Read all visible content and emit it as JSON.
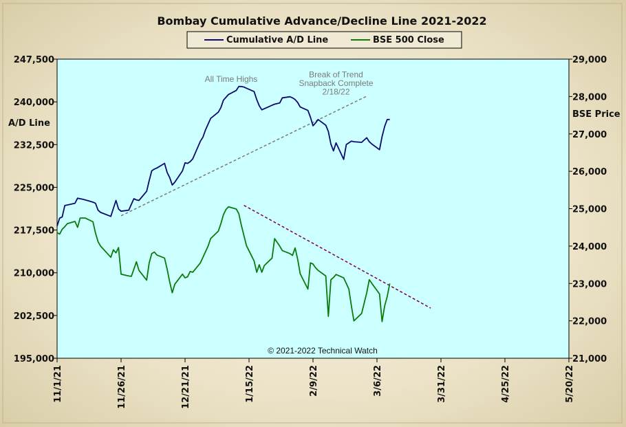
{
  "chart_data": {
    "type": "line",
    "title": "Bombay Cumulative Advance/Decline Line 2021-2022",
    "ylabel_left": "A/D Line",
    "ylabel_right": "BSE Price",
    "ylim_left": [
      195000,
      247500
    ],
    "ylim_right": [
      21000,
      29000
    ],
    "y_ticks_left": [
      "195,000",
      "202,500",
      "210,000",
      "217,500",
      "225,000",
      "232,500",
      "240,000",
      "247,500"
    ],
    "y_ticks_right": [
      "21,000",
      "22,000",
      "23,000",
      "24,000",
      "25,000",
      "26,000",
      "27,000",
      "28,000",
      "29,000"
    ],
    "x_range": [
      "2021-11-01",
      "2022-05-20"
    ],
    "x_ticks": [
      "11/1/21",
      "11/26/21",
      "12/21/21",
      "1/15/22",
      "2/9/22",
      "3/6/22",
      "3/31/22",
      "4/25/22",
      "5/20/22"
    ],
    "legend": {
      "placement": "top-center",
      "entries": [
        "Cumulative A/D Line",
        "BSE 500 Close"
      ]
    },
    "grid": false,
    "series": [
      {
        "name": "Cumulative A/D Line",
        "axis": "left",
        "color": "#0a0a6e",
        "x": [
          "2021-11-01",
          "2021-11-02",
          "2021-11-03",
          "2021-11-04",
          "2021-11-05",
          "2021-11-08",
          "2021-11-09",
          "2021-11-10",
          "2021-11-11",
          "2021-11-12",
          "2021-11-15",
          "2021-11-16",
          "2021-11-17",
          "2021-11-18",
          "2021-11-22",
          "2021-11-23",
          "2021-11-24",
          "2021-11-25",
          "2021-11-26",
          "2021-11-29",
          "2021-11-30",
          "2021-12-01",
          "2021-12-02",
          "2021-12-03",
          "2021-12-06",
          "2021-12-07",
          "2021-12-08",
          "2021-12-09",
          "2021-12-10",
          "2021-12-13",
          "2021-12-14",
          "2021-12-15",
          "2021-12-16",
          "2021-12-17",
          "2021-12-20",
          "2021-12-21",
          "2021-12-22",
          "2021-12-23",
          "2021-12-24",
          "2021-12-27",
          "2021-12-28",
          "2021-12-29",
          "2021-12-30",
          "2021-12-31",
          "2022-01-03",
          "2022-01-04",
          "2022-01-05",
          "2022-01-06",
          "2022-01-07",
          "2022-01-10",
          "2022-01-11",
          "2022-01-12",
          "2022-01-13",
          "2022-01-14",
          "2022-01-17",
          "2022-01-18",
          "2022-01-19",
          "2022-01-20",
          "2022-01-21",
          "2022-01-24",
          "2022-01-25",
          "2022-01-27",
          "2022-01-28",
          "2022-01-31",
          "2022-02-01",
          "2022-02-02",
          "2022-02-03",
          "2022-02-04",
          "2022-02-07",
          "2022-02-08",
          "2022-02-09",
          "2022-02-10",
          "2022-02-11",
          "2022-02-14",
          "2022-02-15",
          "2022-02-16",
          "2022-02-17",
          "2022-02-18",
          "2022-02-21",
          "2022-02-22",
          "2022-02-23",
          "2022-02-24",
          "2022-02-25",
          "2022-02-28",
          "2022-03-02",
          "2022-03-03",
          "2022-03-04",
          "2022-03-07",
          "2022-03-08",
          "2022-03-09",
          "2022-03-10",
          "2022-03-11"
        ],
        "values": [
          218200,
          219600,
          219800,
          221800,
          221900,
          222200,
          223100,
          223000,
          222900,
          222800,
          222400,
          222200,
          221000,
          220600,
          219900,
          221300,
          222700,
          221200,
          220800,
          221000,
          222000,
          223000,
          222800,
          222700,
          224300,
          226200,
          227900,
          228200,
          228400,
          229200,
          227600,
          226700,
          225400,
          225900,
          227900,
          229300,
          229200,
          229500,
          230000,
          233100,
          233800,
          235100,
          236100,
          237100,
          238200,
          239000,
          240300,
          240800,
          241300,
          242000,
          242700,
          242700,
          242600,
          242400,
          241800,
          240400,
          239300,
          238600,
          238800,
          239400,
          239600,
          239800,
          240700,
          240900,
          240700,
          240400,
          239900,
          239100,
          238500,
          237300,
          235800,
          236300,
          236900,
          235900,
          234800,
          232600,
          231400,
          232800,
          229900,
          232500,
          232800,
          233100,
          233000,
          232900,
          233700,
          233000,
          232600,
          231600,
          233900,
          235700,
          236900,
          236900
        ]
      },
      {
        "name": "BSE 500 Close",
        "axis": "right",
        "color": "#0a7a0a",
        "x": [
          "2021-11-01",
          "2021-11-02",
          "2021-11-03",
          "2021-11-04",
          "2021-11-05",
          "2021-11-08",
          "2021-11-09",
          "2021-11-10",
          "2021-11-11",
          "2021-11-12",
          "2021-11-15",
          "2021-11-16",
          "2021-11-17",
          "2021-11-18",
          "2021-11-22",
          "2021-11-23",
          "2021-11-24",
          "2021-11-25",
          "2021-11-26",
          "2021-11-29",
          "2021-11-30",
          "2021-12-01",
          "2021-12-02",
          "2021-12-03",
          "2021-12-06",
          "2021-12-07",
          "2021-12-08",
          "2021-12-09",
          "2021-12-10",
          "2021-12-13",
          "2021-12-14",
          "2021-12-15",
          "2021-12-16",
          "2021-12-17",
          "2021-12-20",
          "2021-12-21",
          "2021-12-22",
          "2021-12-23",
          "2021-12-24",
          "2021-12-27",
          "2021-12-28",
          "2021-12-29",
          "2021-12-30",
          "2021-12-31",
          "2022-01-03",
          "2022-01-04",
          "2022-01-05",
          "2022-01-06",
          "2022-01-07",
          "2022-01-10",
          "2022-01-11",
          "2022-01-12",
          "2022-01-13",
          "2022-01-14",
          "2022-01-17",
          "2022-01-18",
          "2022-01-19",
          "2022-01-20",
          "2022-01-21",
          "2022-01-24",
          "2022-01-25",
          "2022-01-27",
          "2022-01-28",
          "2022-01-31",
          "2022-02-01",
          "2022-02-02",
          "2022-02-03",
          "2022-02-04",
          "2022-02-07",
          "2022-02-08",
          "2022-02-09",
          "2022-02-10",
          "2022-02-11",
          "2022-02-14",
          "2022-02-15",
          "2022-02-16",
          "2022-02-17",
          "2022-02-18",
          "2022-02-21",
          "2022-02-22",
          "2022-02-23",
          "2022-02-24",
          "2022-02-25",
          "2022-02-28",
          "2022-03-02",
          "2022-03-03",
          "2022-03-04",
          "2022-03-07",
          "2022-03-08",
          "2022-03-09",
          "2022-03-10",
          "2022-03-11"
        ],
        "values": [
          24360,
          24320,
          24450,
          24520,
          24600,
          24660,
          24500,
          24750,
          24750,
          24750,
          24650,
          24350,
          24120,
          24000,
          23700,
          23900,
          23820,
          23960,
          23250,
          23200,
          23190,
          23380,
          23580,
          23350,
          23090,
          23550,
          23800,
          23840,
          23760,
          23680,
          23380,
          23040,
          22750,
          22980,
          23250,
          23150,
          23180,
          23320,
          23300,
          23550,
          23700,
          23850,
          24000,
          24200,
          24400,
          24600,
          24840,
          24980,
          25050,
          24990,
          24870,
          24560,
          24280,
          24010,
          23600,
          23300,
          23500,
          23300,
          23480,
          23680,
          24200,
          24000,
          23880,
          23800,
          23750,
          23950,
          23650,
          23260,
          22850,
          23550,
          23520,
          23420,
          23350,
          23200,
          22120,
          23100,
          23160,
          23240,
          23150,
          23000,
          22850,
          22400,
          22000,
          22200,
          22750,
          23100,
          23000,
          22720,
          21980,
          22400,
          22650,
          23000
        ]
      }
    ],
    "trendlines": [
      {
        "style": "dashed",
        "color": "#7a7a7a",
        "from": [
          "2021-11-26",
          220000
        ],
        "to": [
          "2022-03-02",
          241000
        ]
      },
      {
        "style": "dashed",
        "color": "#800040",
        "from": [
          "2022-01-13",
          25090
        ],
        "to": [
          "2022-03-27",
          22340
        ]
      }
    ],
    "annotations": [
      {
        "text": "All Time Highs",
        "x": "2022-01-08",
        "y": 243500
      },
      {
        "text": "Break of Trend",
        "x": "2022-02-18",
        "y": 244300
      },
      {
        "text": "Snapback Complete",
        "x": "2022-02-18",
        "y": 242800
      },
      {
        "text": "2/18/22",
        "x": "2022-02-18",
        "y": 241300
      }
    ],
    "copyright": "© 2021-2022  Technical Watch"
  }
}
